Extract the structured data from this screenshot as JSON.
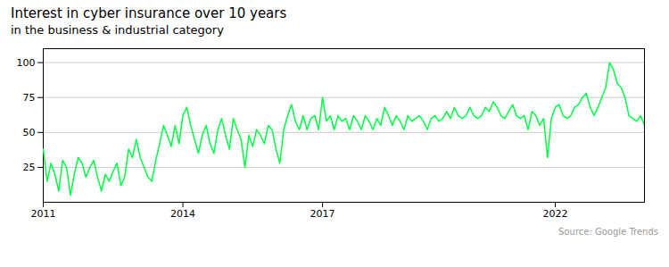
{
  "chart_data": {
    "type": "line",
    "title": "Interest in cyber insurance over 10 years",
    "subtitle": "in the business & industrial category",
    "caption": "Source: Google Trends",
    "color": "#00ff44",
    "categories": [
      "2011",
      null,
      null,
      null,
      null,
      null,
      null,
      null,
      null,
      null,
      null,
      null,
      null,
      null,
      null,
      null,
      null,
      null,
      null,
      null,
      null,
      null,
      null,
      null,
      null,
      null,
      null,
      null,
      null,
      null,
      null,
      null,
      null,
      null,
      null,
      null,
      "2014",
      null,
      null,
      null,
      null,
      null,
      null,
      null,
      null,
      null,
      null,
      null,
      null,
      null,
      null,
      null,
      null,
      null,
      null,
      null,
      null,
      null,
      null,
      null,
      null,
      null,
      null,
      null,
      null,
      null,
      null,
      null,
      null,
      null,
      null,
      null,
      "2017",
      null,
      null,
      null,
      null,
      null,
      null,
      null,
      null,
      null,
      null,
      null,
      null,
      null,
      null,
      null,
      null,
      null,
      null,
      null,
      null,
      null,
      null,
      null,
      null,
      null,
      null,
      null,
      null,
      null,
      null,
      null,
      null,
      null,
      null,
      null,
      null,
      null,
      null,
      null,
      null,
      null,
      null,
      null,
      null,
      null,
      null,
      null,
      null,
      null,
      null,
      null,
      null,
      null,
      null,
      null,
      null,
      null,
      null,
      null,
      "2022",
      null,
      null,
      null,
      null,
      null,
      null,
      null,
      null,
      null,
      null,
      null,
      null,
      null,
      null,
      null,
      null,
      null,
      null,
      null,
      null,
      null,
      null,
      null
    ],
    "values": [
      38,
      15,
      28,
      20,
      8,
      30,
      25,
      5,
      20,
      32,
      28,
      18,
      25,
      30,
      18,
      8,
      20,
      15,
      22,
      28,
      12,
      18,
      38,
      32,
      45,
      32,
      25,
      18,
      15,
      30,
      42,
      55,
      48,
      40,
      55,
      42,
      62,
      68,
      55,
      45,
      35,
      48,
      55,
      42,
      35,
      52,
      60,
      48,
      38,
      60,
      52,
      45,
      25,
      48,
      40,
      52,
      48,
      42,
      55,
      52,
      38,
      28,
      52,
      62,
      70,
      58,
      52,
      62,
      52,
      60,
      62,
      52,
      75,
      58,
      62,
      52,
      62,
      58,
      60,
      52,
      62,
      58,
      52,
      62,
      58,
      52,
      60,
      55,
      68,
      62,
      55,
      62,
      58,
      52,
      62,
      58,
      60,
      62,
      58,
      52,
      60,
      62,
      58,
      60,
      65,
      60,
      68,
      62,
      60,
      62,
      68,
      62,
      60,
      62,
      68,
      65,
      72,
      68,
      62,
      60,
      65,
      70,
      62,
      60,
      62,
      52,
      65,
      62,
      55,
      60,
      32,
      60,
      68,
      70,
      62,
      60,
      62,
      68,
      70,
      75,
      78,
      68,
      62,
      68,
      75,
      82,
      100,
      95,
      85,
      82,
      75,
      62,
      60,
      58,
      62,
      55
    ],
    "ylim": [
      0,
      110
    ],
    "yticks": [
      25,
      50,
      75,
      100
    ],
    "grid": true
  }
}
